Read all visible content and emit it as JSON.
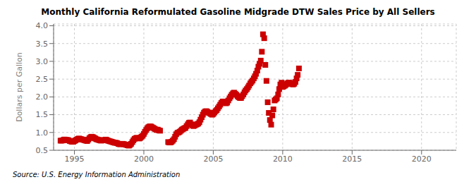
{
  "chart_data": {
    "type": "scatter",
    "title": "Monthly California Reformulated Gasoline Midgrade DTW Sales Price by All Sellers",
    "ylabel": "Dollars per Gallon",
    "annotations": [
      "Source: U.S. Energy Information Administration"
    ],
    "color": "#cc0000",
    "marker": "square",
    "grid": true,
    "xlim": [
      1993.5,
      2022.5
    ],
    "ylim": [
      0.5,
      4.05
    ],
    "xticks": [
      1995,
      2000,
      2005,
      2010,
      2015,
      2020
    ],
    "yticks": [
      0.5,
      {
        "value": 1.0,
        "label": "1.0"
      },
      1.5,
      {
        "value": 2.0,
        "label": "2.0"
      },
      2.5,
      {
        "value": 3.0,
        "label": "3.0"
      },
      3.5,
      {
        "value": 4.0,
        "label": "4.0"
      }
    ],
    "x": [
      1994.0,
      1994.08,
      1994.17,
      1994.25,
      1994.33,
      1994.42,
      1994.5,
      1994.58,
      1994.67,
      1994.75,
      1994.83,
      1994.92,
      1995.0,
      1995.08,
      1995.17,
      1995.25,
      1995.33,
      1995.42,
      1995.5,
      1995.58,
      1995.67,
      1995.75,
      1995.83,
      1995.92,
      1996.0,
      1996.08,
      1996.17,
      1996.25,
      1996.33,
      1996.42,
      1996.5,
      1996.58,
      1996.67,
      1996.75,
      1996.83,
      1996.92,
      1997.0,
      1997.08,
      1997.17,
      1997.25,
      1997.33,
      1997.42,
      1997.5,
      1997.58,
      1997.67,
      1997.75,
      1997.83,
      1997.92,
      1998.0,
      1998.08,
      1998.17,
      1998.25,
      1998.33,
      1998.42,
      1998.5,
      1998.58,
      1998.67,
      1998.75,
      1998.83,
      1998.92,
      1999.0,
      1999.08,
      1999.17,
      1999.25,
      1999.33,
      1999.42,
      1999.5,
      1999.58,
      1999.67,
      1999.75,
      1999.83,
      1999.92,
      2000.0,
      2000.08,
      2000.17,
      2000.25,
      2000.33,
      2000.42,
      2000.5,
      2000.58,
      2000.67,
      2000.75,
      2000.83,
      2000.92,
      2001.0,
      2001.08,
      2001.17,
      2001.75,
      2001.83,
      2001.92,
      2002.0,
      2002.08,
      2002.17,
      2002.25,
      2002.33,
      2002.42,
      2002.5,
      2002.58,
      2002.67,
      2002.75,
      2002.83,
      2002.92,
      2003.0,
      2003.08,
      2003.17,
      2003.25,
      2003.33,
      2003.42,
      2003.5,
      2003.58,
      2003.67,
      2003.75,
      2003.83,
      2003.92,
      2004.0,
      2004.08,
      2004.17,
      2004.25,
      2004.33,
      2004.42,
      2004.5,
      2004.58,
      2004.67,
      2004.75,
      2004.83,
      2004.92,
      2005.0,
      2005.08,
      2005.17,
      2005.25,
      2005.33,
      2005.42,
      2005.5,
      2005.58,
      2005.67,
      2005.75,
      2005.83,
      2005.92,
      2006.0,
      2006.08,
      2006.17,
      2006.25,
      2006.33,
      2006.42,
      2006.5,
      2006.58,
      2006.67,
      2006.75,
      2006.83,
      2006.92,
      2007.0,
      2007.08,
      2007.17,
      2007.25,
      2007.33,
      2007.42,
      2007.5,
      2007.58,
      2007.67,
      2007.75,
      2007.83,
      2007.92,
      2008.0,
      2008.08,
      2008.17,
      2008.25,
      2008.33,
      2008.42,
      2008.5,
      2008.58,
      2008.67,
      2008.75,
      2008.83,
      2008.92,
      2009.0,
      2009.08,
      2009.17,
      2009.25,
      2009.33,
      2009.42,
      2009.5,
      2009.58,
      2009.67,
      2009.75,
      2009.83,
      2009.92,
      2010.0,
      2010.08,
      2010.17,
      2010.25,
      2010.33,
      2010.42,
      2010.5,
      2010.58,
      2010.67,
      2010.75,
      2010.83,
      2010.92,
      2011.0,
      2011.08,
      2011.17
    ],
    "values": [
      0.77,
      0.77,
      0.78,
      0.8,
      0.8,
      0.79,
      0.79,
      0.78,
      0.76,
      0.75,
      0.74,
      0.74,
      0.76,
      0.78,
      0.8,
      0.82,
      0.83,
      0.82,
      0.81,
      0.8,
      0.79,
      0.78,
      0.77,
      0.76,
      0.8,
      0.84,
      0.87,
      0.88,
      0.87,
      0.85,
      0.83,
      0.81,
      0.8,
      0.79,
      0.78,
      0.77,
      0.78,
      0.78,
      0.79,
      0.8,
      0.79,
      0.77,
      0.76,
      0.75,
      0.74,
      0.73,
      0.72,
      0.71,
      0.71,
      0.7,
      0.68,
      0.67,
      0.67,
      0.68,
      0.68,
      0.67,
      0.66,
      0.65,
      0.64,
      0.63,
      0.65,
      0.68,
      0.73,
      0.78,
      0.82,
      0.84,
      0.85,
      0.84,
      0.83,
      0.85,
      0.88,
      0.91,
      0.96,
      1.02,
      1.07,
      1.12,
      1.15,
      1.17,
      1.17,
      1.15,
      1.13,
      1.11,
      1.09,
      1.07,
      1.08,
      1.06,
      1.05,
      0.73,
      0.72,
      0.72,
      0.74,
      0.77,
      0.81,
      0.88,
      0.95,
      0.99,
      1.0,
      1.02,
      1.05,
      1.08,
      1.1,
      1.12,
      1.13,
      1.18,
      1.23,
      1.27,
      1.28,
      1.23,
      1.2,
      1.18,
      1.2,
      1.22,
      1.23,
      1.25,
      1.29,
      1.36,
      1.43,
      1.5,
      1.56,
      1.59,
      1.6,
      1.58,
      1.56,
      1.54,
      1.52,
      1.5,
      1.52,
      1.56,
      1.6,
      1.63,
      1.68,
      1.73,
      1.78,
      1.83,
      1.87,
      1.87,
      1.85,
      1.82,
      1.84,
      1.9,
      1.96,
      2.01,
      2.06,
      2.1,
      2.12,
      2.09,
      2.06,
      2.02,
      1.99,
      1.97,
      1.97,
      2.02,
      2.07,
      2.13,
      2.18,
      2.22,
      2.27,
      2.32,
      2.38,
      2.42,
      2.46,
      2.52,
      2.58,
      2.65,
      2.74,
      2.85,
      2.93,
      3.02,
      3.27,
      3.76,
      3.65,
      2.9,
      2.45,
      1.85,
      1.55,
      1.35,
      1.22,
      1.48,
      1.65,
      1.9,
      1.93,
      1.96,
      2.07,
      2.22,
      2.35,
      2.4,
      2.28,
      2.3,
      2.32,
      2.35,
      2.38,
      2.4,
      2.4,
      2.38,
      2.36,
      2.35,
      2.37,
      2.42,
      2.52,
      2.62,
      2.8
    ]
  }
}
